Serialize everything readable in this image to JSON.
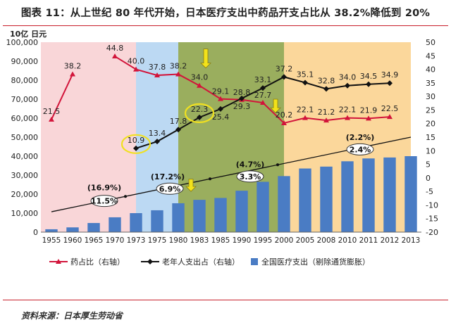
{
  "title": "图表 11：从上世纪 80 年代开始，日本医疗支出中药品开支占比从 38.2%降低到 20%",
  "source": "资料来源：日本厚生劳动省",
  "colors": {
    "drug_line": "#d2143a",
    "elderly_line": "#111111",
    "bars": "#4a7cc4",
    "band_pink": "#f9d6d8",
    "band_blue": "#bcd9f3",
    "band_green": "#9aae5e",
    "band_orange": "#fbd79b",
    "circle": "#f0e020",
    "arrow": "#f2e21a"
  },
  "chart_data": {
    "type": "combo",
    "categories": [
      "1955",
      "1960",
      "1965",
      "1970",
      "1973",
      "1975",
      "1980",
      "1983",
      "1985",
      "1990",
      "1995",
      "2000",
      "2005",
      "2008",
      "2010",
      "2011",
      "2012",
      "2013"
    ],
    "left_axis": {
      "label": "10亿 日元",
      "ylim": [
        0,
        100000
      ],
      "ticks": [
        "0",
        "10,000",
        "20,000",
        "30,000",
        "40,000",
        "50,000",
        "60,000",
        "70,000",
        "80,000",
        "90,000",
        "100,000"
      ]
    },
    "right_axis": {
      "ylim": [
        -20,
        50
      ],
      "ticks": [
        "-20",
        "-15",
        "-10",
        "-5",
        "0",
        "5",
        "10",
        "15",
        "20",
        "25",
        "30",
        "35",
        "40",
        "45",
        "50"
      ]
    },
    "series": [
      {
        "name": "全国医疗支出（剔除通货膨胀）",
        "kind": "bar",
        "axis": "left",
        "values": [
          1500,
          2500,
          4800,
          7800,
          10000,
          11500,
          15200,
          17000,
          18000,
          21800,
          26500,
          29500,
          33500,
          34500,
          37300,
          38800,
          39300,
          40000
        ]
      },
      {
        "name": "药占比（右轴）",
        "kind": "line",
        "axis": "right",
        "marker": "triangle",
        "values": [
          21.5,
          38.2,
          null,
          44.8,
          40.0,
          37.8,
          38.2,
          34.0,
          29.1,
          28.8,
          27.7,
          20.2,
          22.1,
          21.2,
          22.1,
          21.9,
          22.5,
          null
        ],
        "labels": [
          "21.5",
          "38.2",
          null,
          "44.8",
          "40.0",
          "37.8",
          "38.2",
          "34.0",
          "29.1",
          "28.8",
          "27.7",
          "20.2",
          "22.1",
          "21.2",
          "22.1",
          "21.9",
          "22.5",
          null
        ]
      },
      {
        "name": "老年人支出占（右轴）",
        "kind": "line",
        "axis": "right",
        "marker": "diamond",
        "values": [
          null,
          null,
          null,
          null,
          10.9,
          13.4,
          17.8,
          22.3,
          25.4,
          29.3,
          33.1,
          37.2,
          35.1,
          32.8,
          34.0,
          34.5,
          34.9,
          null
        ],
        "labels": [
          null,
          null,
          null,
          null,
          "10.9",
          "13.4",
          "17.8",
          "22.3",
          "25.4",
          "29.3",
          "33.1",
          "37.2",
          "35.1",
          "32.8",
          "34.0",
          "34.5",
          "34.9",
          null
        ]
      },
      {
        "name": "growth trend",
        "kind": "trend",
        "axis": "right",
        "points": [
          [
            0,
            -12.5
          ],
          [
            17,
            15
          ]
        ]
      }
    ],
    "growth_labels": [
      {
        "text": "(16.9%)",
        "at": 2.5,
        "y": -3.5
      },
      {
        "text": "11.5%",
        "at": 2.5,
        "y": -8.5,
        "oval": true
      },
      {
        "text": "(17.2%)",
        "at": 5.5,
        "y": 0.5
      },
      {
        "text": "6.9%",
        "at": 5.6,
        "y": -4.0,
        "oval": true
      },
      {
        "text": "(4.7%)",
        "at": 9.4,
        "y": 5.0
      },
      {
        "text": "3.3%",
        "at": 9.4,
        "y": 0.5,
        "oval": true
      },
      {
        "text": "(2.2%)",
        "at": 14.6,
        "y": 15.0
      },
      {
        "text": "2.4%",
        "at": 14.6,
        "y": 10.5,
        "oval": true
      }
    ],
    "bands": [
      {
        "from": 0,
        "to": 4.5,
        "color": "band_pink"
      },
      {
        "from": 4.5,
        "to": 6.5,
        "color": "band_blue"
      },
      {
        "from": 6.5,
        "to": 11.5,
        "color": "band_green"
      },
      {
        "from": 11.5,
        "to": 17.5,
        "color": "band_orange"
      }
    ],
    "highlight_circles": [
      {
        "at": 4,
        "y": 10.9
      },
      {
        "at": 7,
        "y": 22.3
      }
    ],
    "arrows": [
      {
        "at": 6.6,
        "from_y": -0.5,
        "to_y": -5
      },
      {
        "at": 7.3,
        "from_y": 47.5,
        "to_y": 40.5
      },
      {
        "at": 10.6,
        "from_y": 29,
        "to_y": 24
      }
    ],
    "legend": [
      "药占比（右轴）",
      "老年人支出占（右轴）",
      "全国医疗支出（剔除通货膨胀）"
    ]
  }
}
